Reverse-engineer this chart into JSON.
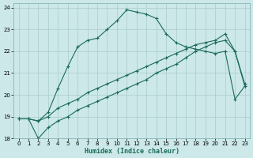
{
  "xlabel": "Humidex (Indice chaleur)",
  "bg_color": "#cce8e8",
  "grid_color": "#aacccc",
  "line_color": "#1a6b58",
  "xlim": [
    -0.5,
    23.5
  ],
  "ylim": [
    18,
    24.2
  ],
  "yticks": [
    18,
    19,
    20,
    21,
    22,
    23,
    24
  ],
  "xticks": [
    0,
    1,
    2,
    3,
    4,
    5,
    6,
    7,
    8,
    9,
    10,
    11,
    12,
    13,
    14,
    15,
    16,
    17,
    18,
    19,
    20,
    21,
    22,
    23
  ],
  "line_curved_x": [
    0,
    1,
    2,
    3,
    4,
    5,
    6,
    7,
    8,
    9,
    10,
    11,
    12,
    13,
    14,
    15,
    16,
    17,
    18,
    19,
    20,
    21,
    22,
    23
  ],
  "line_curved_y": [
    18.9,
    18.9,
    18.8,
    19.2,
    20.3,
    21.3,
    22.2,
    22.5,
    22.6,
    23.0,
    23.4,
    23.9,
    23.8,
    23.7,
    23.5,
    22.8,
    22.4,
    22.2,
    22.1,
    22.0,
    21.9,
    22.0,
    19.8,
    20.4
  ],
  "line_upper_diag_x": [
    0,
    1,
    2,
    3,
    4,
    5,
    6,
    7,
    8,
    9,
    10,
    11,
    12,
    13,
    14,
    15,
    16,
    17,
    18,
    19,
    20,
    21,
    22,
    23
  ],
  "line_upper_diag_y": [
    18.9,
    18.9,
    18.8,
    19.0,
    19.4,
    19.6,
    19.8,
    20.1,
    20.3,
    20.5,
    20.7,
    20.9,
    21.1,
    21.3,
    21.5,
    21.7,
    21.9,
    22.1,
    22.3,
    22.4,
    22.5,
    22.8,
    22.0,
    20.5
  ],
  "line_lower_diag_x": [
    0,
    1,
    2,
    3,
    4,
    5,
    6,
    7,
    8,
    9,
    10,
    11,
    12,
    13,
    14,
    15,
    16,
    17,
    18,
    19,
    20,
    21,
    22,
    23
  ],
  "line_lower_diag_y": [
    18.9,
    18.9,
    18.0,
    18.5,
    18.8,
    19.0,
    19.3,
    19.5,
    19.7,
    19.9,
    20.1,
    20.3,
    20.5,
    20.7,
    21.0,
    21.2,
    21.4,
    21.7,
    22.0,
    22.2,
    22.4,
    22.5,
    22.0,
    20.4
  ]
}
